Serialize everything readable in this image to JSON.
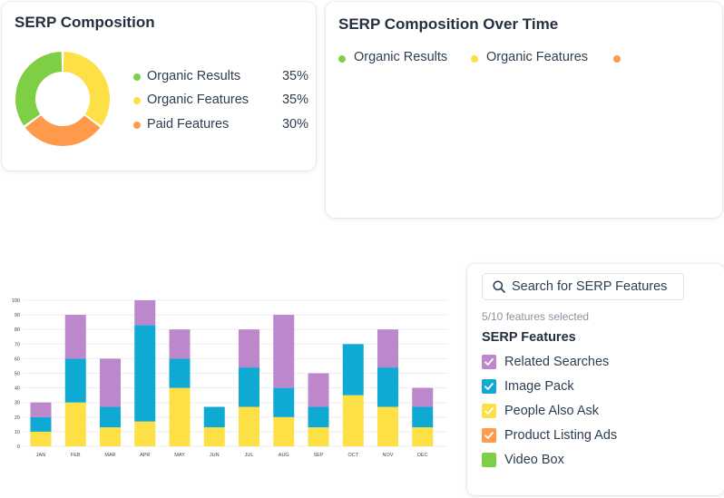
{
  "composition": {
    "title": "SERP Composition",
    "items": [
      {
        "label": "Organic Results",
        "pct": "35%",
        "value": 35,
        "color": "#7fcf45"
      },
      {
        "label": "Organic Features",
        "pct": "35%",
        "value": 35,
        "color": "#fde046"
      },
      {
        "label": "Paid Features",
        "pct": "30%",
        "value": 30,
        "color": "#ff9a4d"
      }
    ]
  },
  "over_time": {
    "title": "SERP Composition Over Time",
    "legend": [
      {
        "label": "Organic Results",
        "color": "#7fcf45"
      },
      {
        "label": "Organic Features",
        "color": "#fde046"
      },
      {
        "label": "",
        "color": "#ff9a4d"
      }
    ]
  },
  "chart_data": {
    "type": "bar",
    "stacked": true,
    "categories": [
      "JAN",
      "FEB",
      "MAR",
      "APR",
      "MAY",
      "JUN",
      "JUL",
      "AUG",
      "SEP",
      "OCT",
      "NOV",
      "DEC"
    ],
    "series": [
      {
        "name": "People Also Ask",
        "color": "#fde046",
        "values": [
          10,
          30,
          13,
          17,
          40,
          13,
          27,
          20,
          13,
          35,
          27,
          13
        ]
      },
      {
        "name": "Image Pack",
        "color": "#0eaad4",
        "values": [
          10,
          30,
          14,
          66,
          20,
          14,
          27,
          20,
          14,
          35,
          27,
          14
        ]
      },
      {
        "name": "Related Searches",
        "color": "#bc87cb",
        "values": [
          10,
          30,
          33,
          17,
          20,
          0,
          26,
          50,
          23,
          0,
          26,
          13
        ]
      }
    ],
    "yticks": [
      0,
      10,
      20,
      30,
      40,
      50,
      60,
      70,
      80,
      90,
      100
    ],
    "ylim": [
      0,
      100
    ],
    "grid": true,
    "xlabel": "",
    "ylabel": "",
    "title": ""
  },
  "features_panel": {
    "search_placeholder": "Search for SERP Features",
    "selected_count": "5/10 features selected",
    "heading": "SERP Features",
    "items": [
      {
        "label": "Related Searches",
        "color": "#bc87cb",
        "checked": true
      },
      {
        "label": "Image Pack",
        "color": "#0eaad4",
        "checked": true
      },
      {
        "label": "People Also Ask",
        "color": "#fde046",
        "checked": true
      },
      {
        "label": "Product Listing Ads",
        "color": "#ff9a4d",
        "checked": true
      },
      {
        "label": "Video Box",
        "color": "#7fcf45",
        "checked": false
      }
    ]
  }
}
